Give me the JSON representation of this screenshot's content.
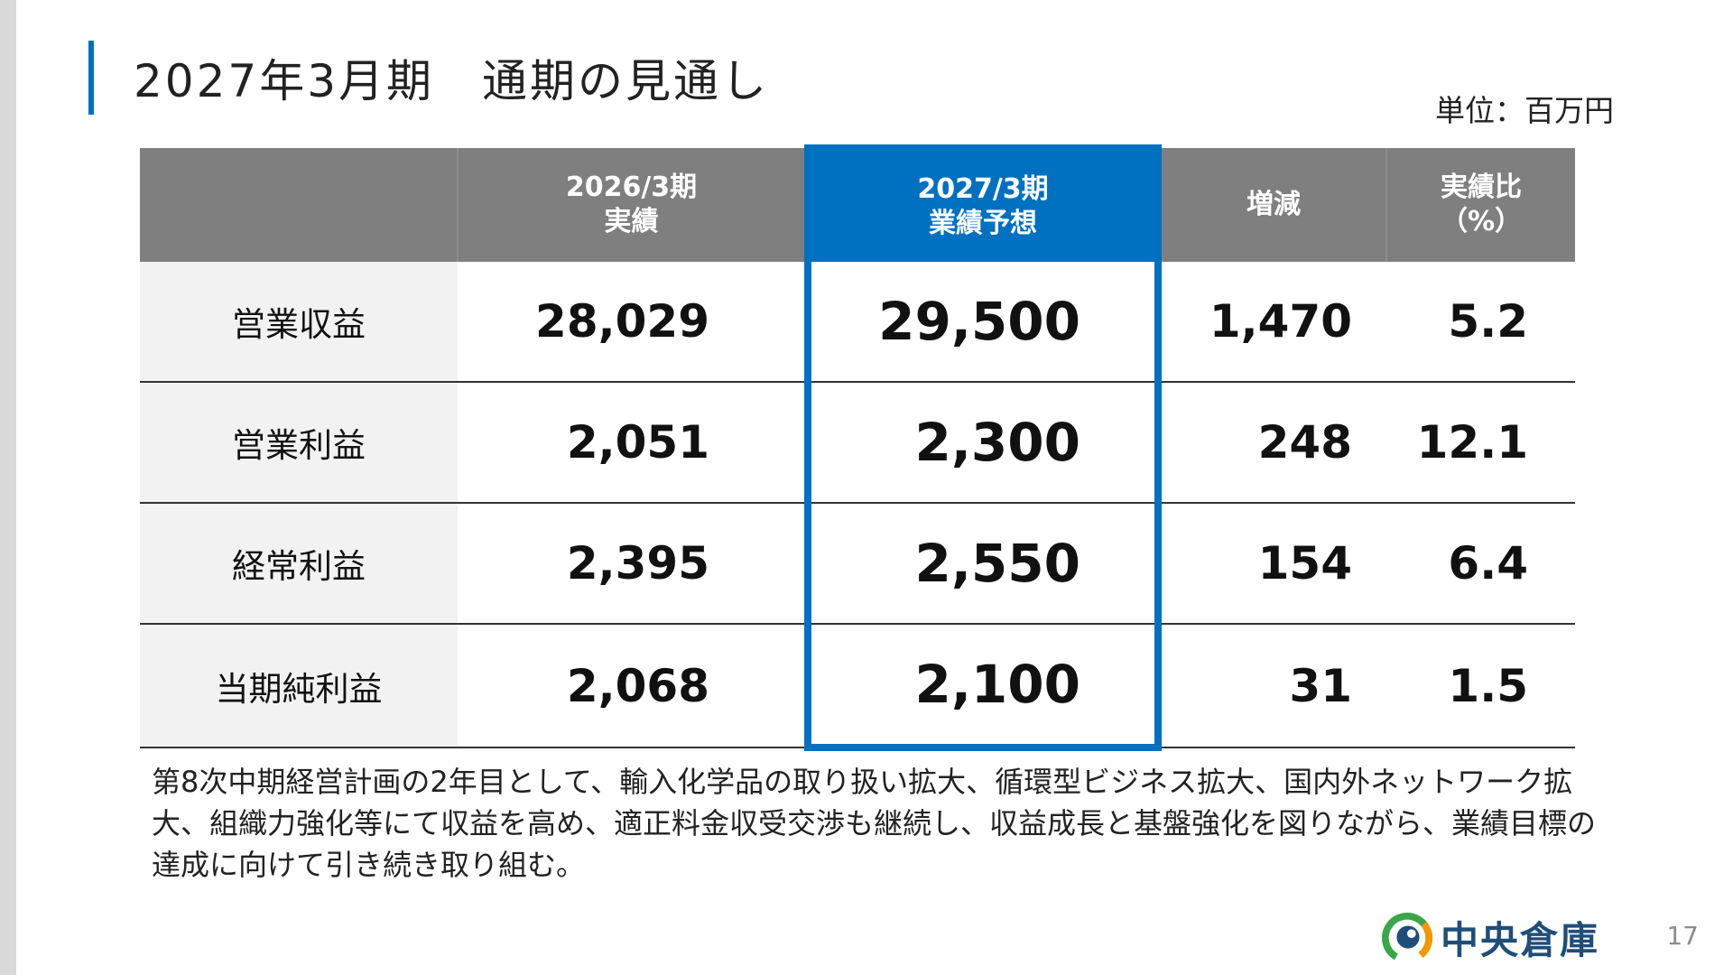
{
  "title": "2027年3月期　通期の見通し",
  "unit": "単位：百万円",
  "table": {
    "headers": [
      {
        "line1": "",
        "line2": ""
      },
      {
        "line1": "2026/3期",
        "line2": "実績"
      },
      {
        "line1": "2027/3期",
        "line2": "業績予想"
      },
      {
        "line1": "増減",
        "line2": ""
      },
      {
        "line1": "実績比",
        "line2": "（%）"
      }
    ],
    "rows": [
      {
        "label": "営業収益",
        "actual": "28,029",
        "forecast": "29,500",
        "change": "1,470",
        "ratio": "5.2"
      },
      {
        "label": "営業利益",
        "actual": "2,051",
        "forecast": "2,300",
        "change": "248",
        "ratio": "12.1"
      },
      {
        "label": "経常利益",
        "actual": "2,395",
        "forecast": "2,550",
        "change": "154",
        "ratio": "6.4"
      },
      {
        "label": "当期純利益",
        "actual": "2,068",
        "forecast": "2,100",
        "change": "31",
        "ratio": "1.5"
      }
    ]
  },
  "commentary": "第8次中期経営計画の2年目として、輸入化学品の取り扱い拡大、循環型ビジネス拡大、国内外ネットワーク拡大、組織力強化等にて収益を高め、適正料金収受交渉も継続し、収益成長と基盤強化を図りながら、業績目標の達成に向けて引き続き取り組む。",
  "logo": {
    "name": "中央倉庫",
    "icon": "company-logo-icon"
  },
  "page_number": "17",
  "colors": {
    "accent": "#0070c0",
    "header_gray": "#7f7f7f",
    "label_bg": "#f2f2f2",
    "logo_text": "#1f4e79",
    "logo_green": "#3aa64a",
    "logo_orange": "#f39800"
  }
}
